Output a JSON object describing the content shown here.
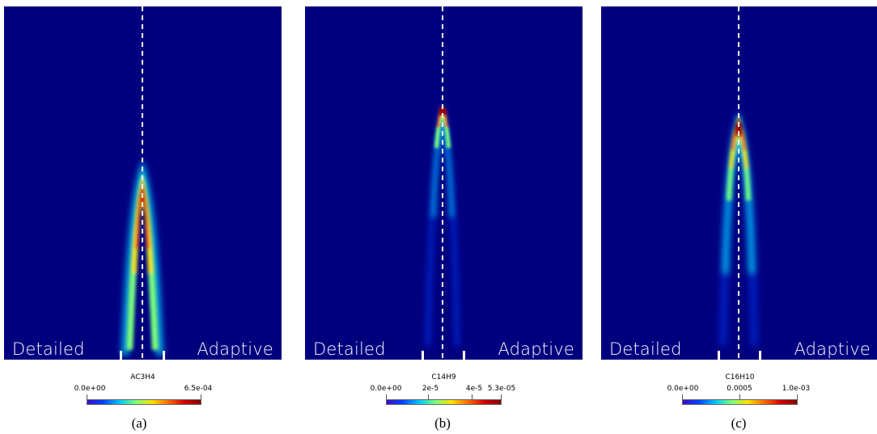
{
  "panels": [
    {
      "left_label": "Detailed",
      "right_label": "Adaptive",
      "colorbar": {
        "title": "AC3H4",
        "ticks": [
          "0.0e+00",
          "6.5e-04"
        ]
      },
      "caption": "(a)"
    },
    {
      "left_label": "Detailed",
      "right_label": "Adaptive",
      "colorbar": {
        "title": "C14H9",
        "ticks": [
          "0.0e+00",
          "2e-5",
          "4e-5",
          "5.3e-05"
        ]
      },
      "caption": "(b)"
    },
    {
      "left_label": "Detailed",
      "right_label": "Adaptive",
      "colorbar": {
        "title": "C16H10",
        "ticks": [
          "0.0e+00",
          "0.0005",
          "1.0e-03"
        ]
      },
      "caption": "(c)"
    }
  ],
  "colors": {
    "background_field": "#00007f",
    "colormap": [
      "#3b0cc4",
      "#0043ff",
      "#00c8ff",
      "#7dff7a",
      "#ffe000",
      "#ff6a00",
      "#d40000",
      "#850000"
    ]
  }
}
